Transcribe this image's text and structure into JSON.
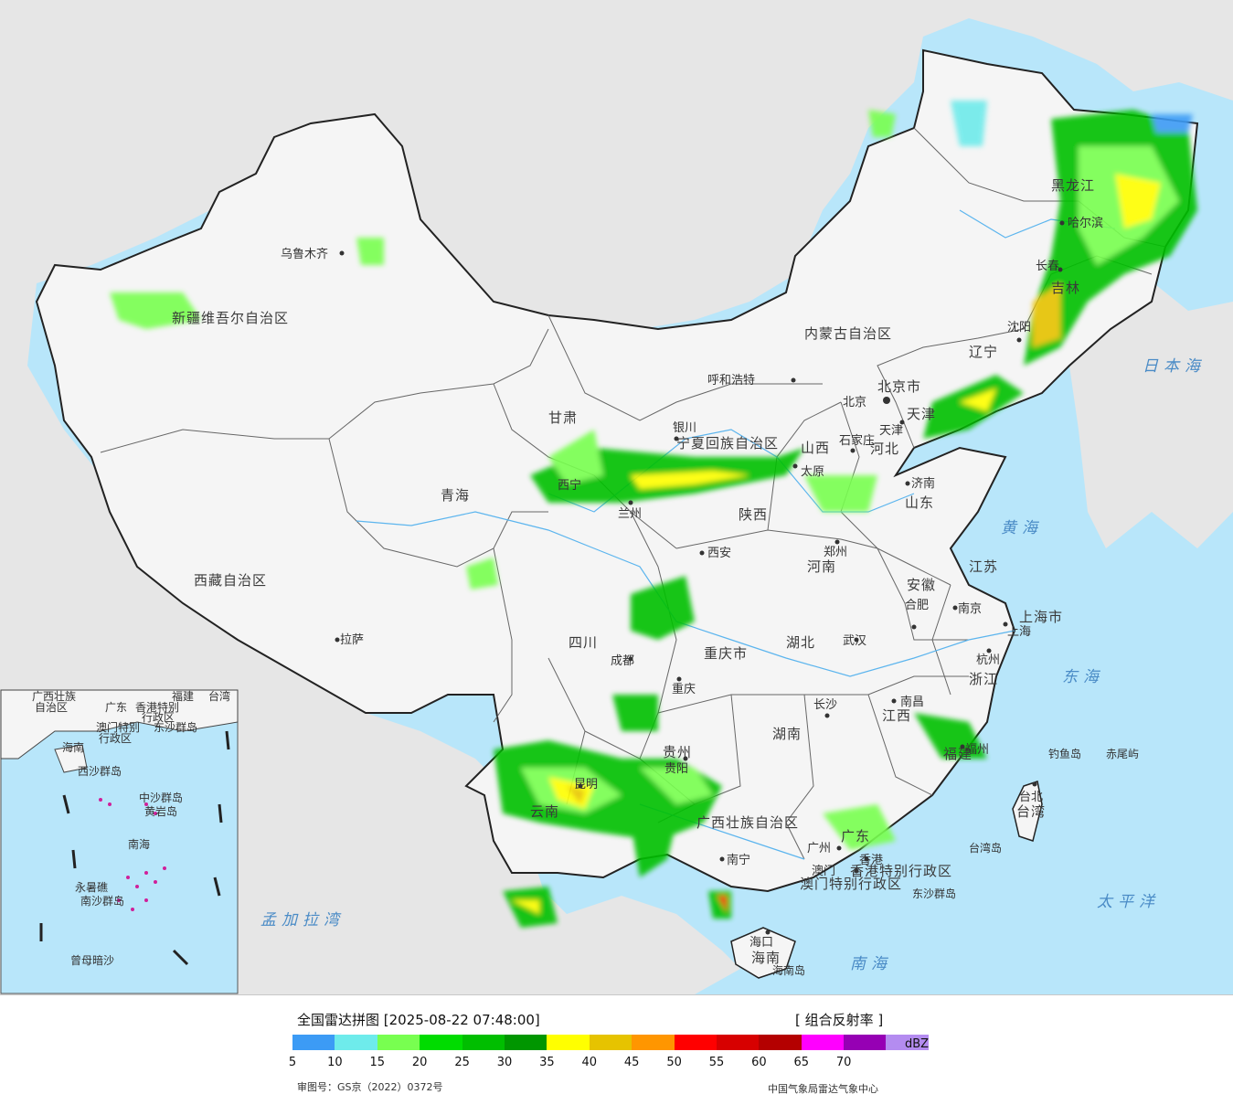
{
  "map": {
    "provinces": [
      "新疆维吾尔自治区",
      "西藏自治区",
      "青海",
      "甘肃",
      "内蒙古自治区",
      "四川",
      "云南",
      "贵州",
      "广西壮族自治区",
      "广东",
      "湖南",
      "湖北",
      "河南",
      "陕西",
      "山西",
      "河北",
      "山东",
      "江苏",
      "安徽",
      "浙江",
      "江西",
      "福建",
      "黑龙江",
      "吉林",
      "辽宁",
      "宁夏回族自治区",
      "重庆市",
      "上海市",
      "天津",
      "北京市",
      "海南",
      "台湾",
      "香港特别行政区",
      "澳门特别行政区"
    ],
    "cities": [
      "乌鲁木齐",
      "拉萨",
      "西宁",
      "兰州",
      "银川",
      "呼和浩特",
      "北京",
      "天津",
      "石家庄",
      "太原",
      "济南",
      "郑州",
      "西安",
      "成都",
      "重庆",
      "昆明",
      "贵阳",
      "南宁",
      "长沙",
      "武汉",
      "合肥",
      "南京",
      "上海",
      "杭州",
      "南昌",
      "福州",
      "台北",
      "广州",
      "澳门",
      "香港",
      "海口",
      "长春",
      "沈阳",
      "哈尔滨"
    ],
    "seas": [
      "日本海",
      "黄海",
      "东海",
      "太平洋",
      "南海",
      "孟加拉湾"
    ],
    "islands": [
      "钓鱼岛",
      "赤尾屿",
      "台湾岛",
      "东沙群岛",
      "海南岛"
    ],
    "inset": {
      "labels": [
        "广西壮族",
        "自治区",
        "广东",
        "福建",
        "台湾",
        "香港特别",
        "行政区",
        "澳门特别",
        "行政区",
        "东沙群岛",
        "海南",
        "西沙群岛",
        "中沙群岛",
        "黄岩岛",
        "南海",
        "南沙群岛",
        "永暑礁",
        "曾母暗沙"
      ]
    }
  },
  "legend": {
    "title": "全国雷达拼图 [2025-08-22 07:48:00]",
    "product": "[ 组合反射率 ]",
    "unit": "dBZ",
    "ticks": [
      "5",
      "10",
      "15",
      "20",
      "25",
      "30",
      "35",
      "40",
      "45",
      "50",
      "55",
      "60",
      "65",
      "70"
    ],
    "colors": [
      "#3c9bf5",
      "#6eebeb",
      "#78ff50",
      "#00dc00",
      "#00be00",
      "#009600",
      "#ffff00",
      "#e6c300",
      "#ff9600",
      "#ff0000",
      "#d70000",
      "#b40000",
      "#ff00ff",
      "#9600b4",
      "#b48cf0"
    ],
    "approval": "审图号：GS京（2022）0372号",
    "credit": "中国气象局雷达气象中心"
  }
}
